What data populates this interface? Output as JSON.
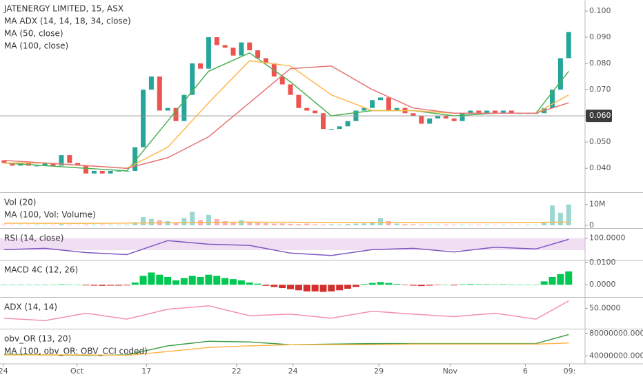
{
  "chart_data": [
    {
      "type": "candlestick",
      "title": "JATENERGY LIMITED, 15, ASX",
      "open": [
        0.043,
        0.042,
        0.041,
        0.042,
        0.041,
        0.041,
        0.042,
        0.041,
        0.045,
        0.042,
        0.041,
        0.038,
        0.039,
        0.038,
        0.039,
        0.039,
        0.039,
        0.048,
        0.07,
        0.075,
        0.062,
        0.063,
        0.058,
        0.068,
        0.08,
        0.078,
        0.09,
        0.087,
        0.086,
        0.083,
        0.088,
        0.085,
        0.082,
        0.08,
        0.075,
        0.072,
        0.068,
        0.063,
        0.062,
        0.061,
        0.055,
        0.055,
        0.056,
        0.058,
        0.062,
        0.063,
        0.066,
        0.067,
        0.062,
        0.063,
        0.061,
        0.06,
        0.057,
        0.059,
        0.06,
        0.059,
        0.058,
        0.061,
        0.062,
        0.061,
        0.062,
        0.061,
        0.062,
        0.061,
        0.061,
        0.061,
        0.061,
        0.063,
        0.07,
        0.082
      ],
      "close": [
        0.042,
        0.041,
        0.042,
        0.041,
        0.041,
        0.042,
        0.041,
        0.045,
        0.042,
        0.041,
        0.038,
        0.039,
        0.038,
        0.039,
        0.039,
        0.039,
        0.048,
        0.07,
        0.075,
        0.062,
        0.063,
        0.058,
        0.068,
        0.08,
        0.078,
        0.09,
        0.087,
        0.086,
        0.083,
        0.088,
        0.085,
        0.082,
        0.08,
        0.075,
        0.072,
        0.068,
        0.063,
        0.062,
        0.061,
        0.055,
        0.055,
        0.056,
        0.058,
        0.062,
        0.063,
        0.066,
        0.067,
        0.062,
        0.063,
        0.061,
        0.06,
        0.057,
        0.059,
        0.06,
        0.059,
        0.058,
        0.061,
        0.062,
        0.061,
        0.062,
        0.061,
        0.062,
        0.061,
        0.061,
        0.061,
        0.061,
        0.063,
        0.07,
        0.082,
        0.092
      ],
      "up_color": "#26a69a",
      "down_color": "#ef5350",
      "series": [
        {
          "name": "MA ADX (14, 14, 18, 34, close)",
          "color": "#4caf50",
          "x": [
            0,
            5,
            10,
            15,
            20,
            25,
            30,
            35,
            40,
            45,
            50,
            55,
            60,
            65,
            69
          ],
          "values": [
            0.042,
            0.041,
            0.04,
            0.039,
            0.058,
            0.077,
            0.084,
            0.073,
            0.06,
            0.062,
            0.062,
            0.06,
            0.061,
            0.061,
            0.077
          ]
        },
        {
          "name": "MA (50, close)",
          "color": "#ffb74d",
          "x": [
            0,
            5,
            10,
            15,
            20,
            25,
            30,
            35,
            40,
            45,
            50,
            55,
            60,
            65,
            69
          ],
          "values": [
            0.042,
            0.042,
            0.041,
            0.04,
            0.048,
            0.065,
            0.081,
            0.079,
            0.068,
            0.062,
            0.062,
            0.061,
            0.061,
            0.061,
            0.068
          ]
        },
        {
          "name": "MA (100, close)",
          "color": "#e57373",
          "x": [
            0,
            5,
            10,
            15,
            20,
            25,
            30,
            35,
            40,
            45,
            50,
            55,
            60,
            65,
            69
          ],
          "values": [
            0.043,
            0.042,
            0.041,
            0.04,
            0.044,
            0.052,
            0.065,
            0.078,
            0.079,
            0.07,
            0.063,
            0.061,
            0.061,
            0.061,
            0.065
          ]
        }
      ],
      "ylim": [
        0.0311,
        0.1042
      ],
      "yticks": [
        {
          "value": 0.1,
          "label": "0.100"
        },
        {
          "value": 0.09,
          "label": "0.090"
        },
        {
          "value": 0.08,
          "label": "0.080"
        },
        {
          "value": 0.07,
          "label": "0.070"
        },
        {
          "value": 0.05,
          "label": "0.050"
        },
        {
          "value": 0.04,
          "label": "0.040"
        }
      ],
      "price_line": {
        "value": 0.06,
        "label": "0.060"
      }
    },
    {
      "type": "volume",
      "title": "Vol (20)",
      "values": [
        300000,
        200000,
        250000,
        200000,
        300000,
        200000,
        250000,
        600000,
        300000,
        200000,
        400000,
        300000,
        350000,
        300000,
        250000,
        300000,
        1500000,
        4000000,
        3000000,
        2500000,
        2000000,
        1500000,
        3500000,
        6500000,
        2500000,
        5000000,
        3000000,
        2000000,
        1500000,
        2500000,
        1500000,
        1200000,
        1000000,
        800000,
        900000,
        700000,
        600000,
        800000,
        500000,
        400000,
        500000,
        400000,
        600000,
        800000,
        900000,
        1500000,
        3500000,
        2000000,
        800000,
        600000,
        500000,
        400000,
        300000,
        300000,
        400000,
        300000,
        300000,
        250000,
        300000,
        250000,
        200000,
        250000,
        200000,
        200000,
        300000,
        200000,
        1500000,
        9500000,
        6000000,
        10000000
      ],
      "series": [
        {
          "name": "MA (100, Vol: Volume)",
          "color": "#ffb74d",
          "x": [
            0,
            10,
            20,
            30,
            40,
            50,
            60,
            69
          ],
          "values": [
            1000000,
            900000,
            1200000,
            1500000,
            1400000,
            1300000,
            1200000,
            1500000
          ]
        }
      ],
      "ylim": [
        -1000000,
        15200000
      ],
      "yticks": [
        {
          "value": 10000000,
          "label": "10M"
        },
        0
      ]
    },
    {
      "type": "line",
      "title": "RSI (14, close)",
      "band": [
        60,
        100
      ],
      "band_color": "#e1bee7",
      "series": [
        {
          "color": "#7e57c2",
          "x": [
            0,
            5,
            10,
            15,
            20,
            25,
            30,
            35,
            40,
            45,
            50,
            55,
            60,
            65,
            69
          ],
          "values": [
            62,
            66,
            52,
            45,
            92,
            80,
            76,
            50,
            42,
            62,
            66,
            54,
            70,
            64,
            96
          ]
        }
      ],
      "ylim": [
        30,
        129.4
      ],
      "yticks": [
        {
          "value": 100,
          "label": "100.0000"
        }
      ]
    },
    {
      "type": "histogram",
      "title": "MACD 4C (12, 26)",
      "pos_color": "#00c853",
      "neg_color": "#d32f2f",
      "values": [
        0.0001,
        0,
        0.0001,
        0,
        0,
        0.0001,
        0,
        0.0002,
        0.0001,
        0,
        -0.0003,
        -0.0004,
        -0.0005,
        -0.0004,
        -0.0004,
        -0.0003,
        0.001,
        0.004,
        0.0055,
        0.0045,
        0.0035,
        0.002,
        0.003,
        0.004,
        0.0035,
        0.0045,
        0.004,
        0.003,
        0.0025,
        0.002,
        0.001,
        0.0005,
        -0.0005,
        -0.001,
        -0.0015,
        -0.002,
        -0.0025,
        -0.003,
        -0.003,
        -0.0032,
        -0.003,
        -0.0025,
        -0.0018,
        -0.001,
        0.0003,
        0.0008,
        0.0012,
        0.0008,
        0.0003,
        -0.0002,
        -0.0004,
        -0.0006,
        -0.0004,
        -0.0002,
        0.0001,
        -0.0003,
        0.0002,
        0.0003,
        0.0002,
        0.0002,
        0.0001,
        0.0002,
        0.0001,
        0.0001,
        0,
        0.0001,
        0.0015,
        0.0035,
        0.0048,
        0.006
      ],
      "ylim": [
        -0.0052,
        0.0106
      ],
      "yticks": [
        {
          "value": 0.01,
          "label": "0.0100"
        },
        {
          "value": 0,
          "label": "0.0000"
        }
      ]
    },
    {
      "type": "line",
      "title": "ADX (14, 14)",
      "series": [
        {
          "color": "#f48fb1",
          "x": [
            0,
            5,
            10,
            15,
            20,
            25,
            30,
            35,
            40,
            45,
            50,
            55,
            60,
            65,
            69
          ],
          "values": [
            30,
            25,
            40,
            28,
            48,
            55,
            35,
            38,
            30,
            44,
            38,
            33,
            40,
            28,
            65
          ]
        }
      ],
      "ylim": [
        10,
        70
      ],
      "yticks": [
        {
          "value": 50,
          "label": "50.0000"
        }
      ]
    },
    {
      "type": "line",
      "title": "obv_OR (13, 20)",
      "series": [
        {
          "color": "#43a047",
          "x": [
            0,
            5,
            10,
            15,
            20,
            25,
            30,
            35,
            40,
            45,
            50,
            55,
            60,
            65,
            69
          ],
          "values": [
            43000000,
            42000000,
            41000000,
            42000000,
            58000000,
            66000000,
            65000000,
            60000000,
            61000000,
            62000000,
            62000000,
            62000000,
            62000000,
            62000000,
            78000000
          ]
        },
        {
          "name": "MA (100, obv_OR: OBV_CCI coded)",
          "color": "#ffb74d",
          "x": [
            0,
            5,
            10,
            15,
            20,
            25,
            30,
            35,
            40,
            45,
            50,
            55,
            60,
            65,
            69
          ],
          "values": [
            42000000,
            42000000,
            42000000,
            41000000,
            48000000,
            55000000,
            58000000,
            60000000,
            60000000,
            60000000,
            61000000,
            61000000,
            61000000,
            61000000,
            63000000
          ]
        }
      ],
      "ylim": [
        28500000,
        86000000
      ],
      "yticks": [
        {
          "value": 80000000,
          "label": "80000000.0000"
        },
        {
          "value": 40000000,
          "label": "40000000.0000"
        }
      ],
      "xlim": [
        0,
        71.5
      ],
      "xticks": [
        {
          "value": 0.4,
          "label": "24"
        },
        {
          "value": 9.4,
          "label": "Oct"
        },
        {
          "value": 17.9,
          "label": "17"
        },
        {
          "value": 28.9,
          "label": "22"
        },
        {
          "value": 35.8,
          "label": "24"
        },
        {
          "value": 46.3,
          "label": "29"
        },
        {
          "value": 55,
          "label": "Nov"
        },
        {
          "value": 64.2,
          "label": "6"
        },
        {
          "value": 69.6,
          "label": "09:"
        }
      ]
    }
  ]
}
